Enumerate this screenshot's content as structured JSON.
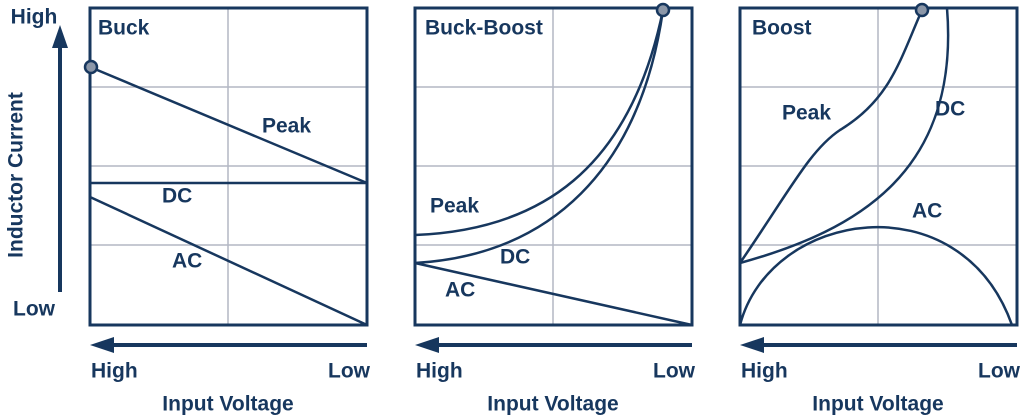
{
  "y_axis": {
    "label": "Inductor Current",
    "high": "High",
    "low": "Low"
  },
  "panels": [
    {
      "title": "Buck",
      "peak": "Peak",
      "dc": "DC",
      "ac": "AC",
      "x_high": "High",
      "x_low": "Low",
      "x_label": "Input Voltage"
    },
    {
      "title": "Buck-Boost",
      "peak": "Peak",
      "dc": "DC",
      "ac": "AC",
      "x_high": "High",
      "x_low": "Low",
      "x_label": "Input Voltage"
    },
    {
      "title": "Boost",
      "peak": "Peak",
      "dc": "DC",
      "ac": "AC",
      "x_high": "High",
      "x_low": "Low",
      "x_label": "Input Voltage"
    }
  ]
}
